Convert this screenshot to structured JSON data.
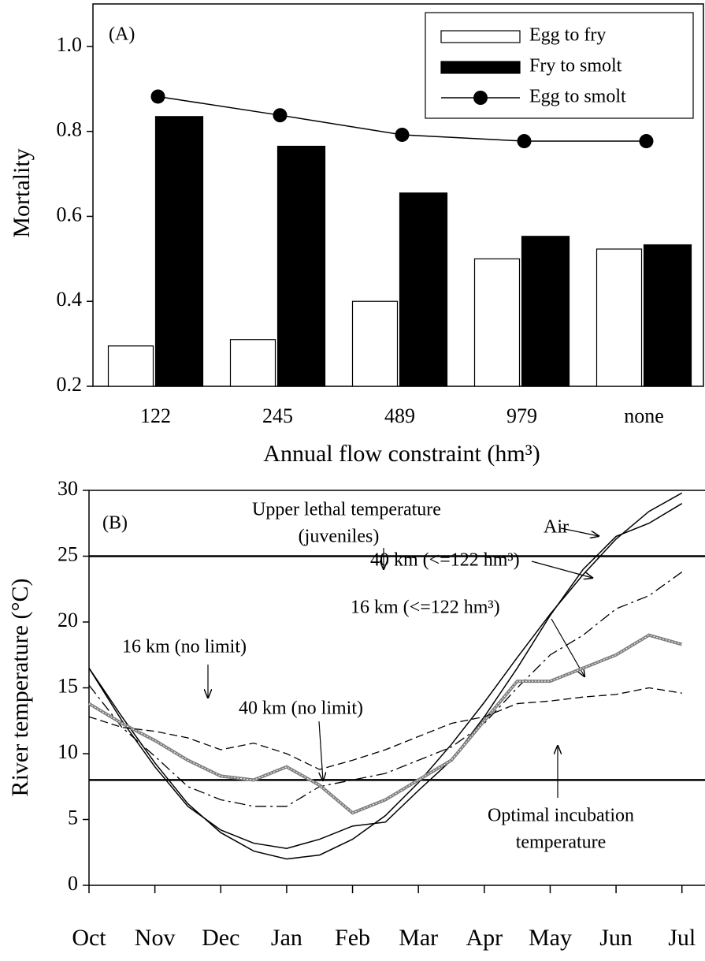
{
  "chart_data": [
    {
      "type": "bar",
      "annotation": "(A)",
      "ylabel": "Mortality",
      "xlabel": "Annual flow constraint (hm³)",
      "categories": [
        "122",
        "245",
        "489",
        "979",
        "none"
      ],
      "series": [
        {
          "name": "Egg to fry",
          "color": "#ffffff",
          "style": "bar",
          "values": [
            0.295,
            0.31,
            0.4,
            0.5,
            0.523
          ]
        },
        {
          "name": "Fry to smolt",
          "color": "#000000",
          "style": "bar",
          "values": [
            0.835,
            0.765,
            0.655,
            0.553,
            0.533
          ]
        },
        {
          "name": "Egg to smolt",
          "color": "#000000",
          "style": "line-marker",
          "values": [
            0.882,
            0.838,
            0.792,
            0.777,
            0.777
          ]
        }
      ],
      "ylim": [
        0.2,
        1.1
      ],
      "yticks": [
        0.2,
        0.4,
        0.6,
        0.8,
        {
          "value": 1,
          "label": "1.0"
        }
      ],
      "legend": "upper right"
    },
    {
      "type": "line",
      "annotation": "(B)",
      "ylabel": "River temperature (°C)",
      "x": [
        0,
        0.5,
        1,
        1.5,
        2,
        2.5,
        3,
        3.5,
        4,
        4.5,
        5,
        5.5,
        6,
        6.5,
        7,
        7.5,
        8,
        8.5,
        9
      ],
      "xlim": [
        0,
        9.35
      ],
      "xticks": [
        {
          "value": 0,
          "label": "Oct"
        },
        {
          "value": 1,
          "label": "Nov"
        },
        {
          "value": 2,
          "label": "Dec"
        },
        {
          "value": 3,
          "label": "Jan"
        },
        {
          "value": 4,
          "label": "Feb"
        },
        {
          "value": 5,
          "label": "Mar"
        },
        {
          "value": 6,
          "label": "Apr"
        },
        {
          "value": 7,
          "label": "May"
        },
        {
          "value": 8,
          "label": "Jun"
        },
        {
          "value": 9,
          "label": "Jul"
        }
      ],
      "ylim": [
        0,
        30
      ],
      "yticks": [
        0,
        5,
        10,
        15,
        20,
        25,
        30
      ],
      "reference_lines": [
        {
          "value": 25,
          "label": [
            "Upper lethal temperature",
            "(juveniles)"
          ]
        },
        {
          "value": 8,
          "label": [
            "Optimal incubation",
            "temperature"
          ]
        }
      ],
      "series": [
        {
          "name": "Air",
          "color": "#000000",
          "dash": "solid",
          "values": [
            16.5,
            12.8,
            9.3,
            6.2,
            4.0,
            2.6,
            2.0,
            2.3,
            3.5,
            5.3,
            7.8,
            10.7,
            13.9,
            17.3,
            20.6,
            23.6,
            26.3,
            28.4,
            29.8
          ]
        },
        {
          "name": "40 km (<=122 hm³)",
          "color": "#000000",
          "dash": "solid",
          "values": [
            16.5,
            12.5,
            9.0,
            6.0,
            4.2,
            3.2,
            2.8,
            3.5,
            4.5,
            4.8,
            7.2,
            9.5,
            12.8,
            16.5,
            20.5,
            24.0,
            26.5,
            27.5,
            29.0
          ]
        },
        {
          "name": "16 km (<=122 hm³)",
          "color": "#000000",
          "dash": "dashdot",
          "values": [
            15.2,
            12.0,
            9.8,
            7.5,
            6.5,
            6.0,
            6.0,
            7.5,
            8.0,
            8.5,
            9.5,
            10.5,
            12.3,
            15.0,
            17.5,
            19.0,
            21.0,
            22.0,
            23.8
          ]
        },
        {
          "name": "40 km  (no limit)",
          "color": "#7f7f7f",
          "dash": "thick",
          "values": [
            13.8,
            12.3,
            11.0,
            9.5,
            8.3,
            8.0,
            9.0,
            7.6,
            5.5,
            6.5,
            8.0,
            9.5,
            12.5,
            15.5,
            15.5,
            16.5,
            17.5,
            19.0,
            18.3
          ]
        },
        {
          "name": "16 km (no limit)",
          "color": "#000000",
          "dash": "dashed",
          "values": [
            12.8,
            12.0,
            11.7,
            11.2,
            10.3,
            10.8,
            10.0,
            8.8,
            9.5,
            10.3,
            11.3,
            12.3,
            12.8,
            13.8,
            14.0,
            14.3,
            14.5,
            15.0,
            14.6
          ]
        }
      ]
    }
  ]
}
